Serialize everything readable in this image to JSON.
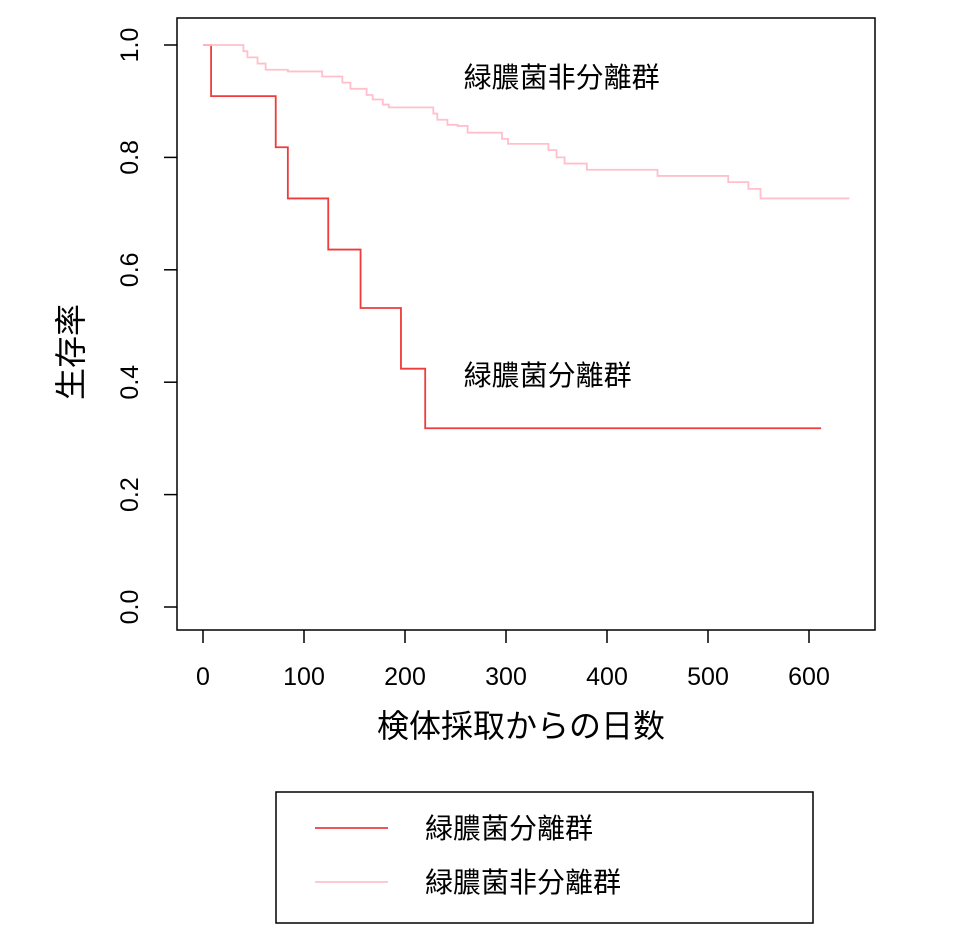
{
  "chart_data": {
    "type": "line",
    "xlabel": "検体採取からの日数",
    "ylabel": "生存率",
    "xlim": [
      0,
      600
    ],
    "ylim": [
      0.0,
      1.0
    ],
    "xticks": [
      0,
      100,
      200,
      300,
      400,
      500,
      600
    ],
    "xtick_labels": [
      "0",
      "100",
      "200",
      "300",
      "400",
      "500",
      "600"
    ],
    "yticks": [
      0.0,
      0.2,
      0.4,
      0.6,
      0.8,
      1.0
    ],
    "ytick_labels": [
      "0.0",
      "0.2",
      "0.4",
      "0.6",
      "0.8",
      "1.0"
    ],
    "grid": false,
    "legend_position": "bottom",
    "series": [
      {
        "name": "緑膿菌分離群",
        "color": "#ee3b3b",
        "step": true,
        "x": [
          0,
          8,
          72,
          84,
          124,
          156,
          196,
          220,
          612
        ],
        "y": [
          1.0,
          0.909,
          0.818,
          0.727,
          0.636,
          0.532,
          0.424,
          0.318,
          0.318
        ]
      },
      {
        "name": "緑膿菌非分離群",
        "color": "#ffc0cb",
        "step": true,
        "x": [
          0,
          40,
          44,
          54,
          62,
          84,
          118,
          138,
          146,
          162,
          168,
          178,
          184,
          212,
          228,
          232,
          242,
          252,
          262,
          290,
          296,
          302,
          342,
          350,
          358,
          362,
          380,
          392,
          450,
          462,
          520,
          540,
          552,
          640
        ],
        "y": [
          1.0,
          0.989,
          0.978,
          0.967,
          0.956,
          0.953,
          0.944,
          0.933,
          0.922,
          0.911,
          0.903,
          0.894,
          0.889,
          0.889,
          0.878,
          0.867,
          0.858,
          0.856,
          0.844,
          0.844,
          0.833,
          0.824,
          0.813,
          0.8,
          0.789,
          0.789,
          0.778,
          0.778,
          0.767,
          0.767,
          0.756,
          0.744,
          0.727,
          0.727
        ]
      }
    ],
    "annotations": [
      {
        "text": "緑膿菌非分離群",
        "x": 258,
        "y": 0.925
      },
      {
        "text": "緑膿菌分離群",
        "x": 258,
        "y": 0.395
      }
    ]
  }
}
